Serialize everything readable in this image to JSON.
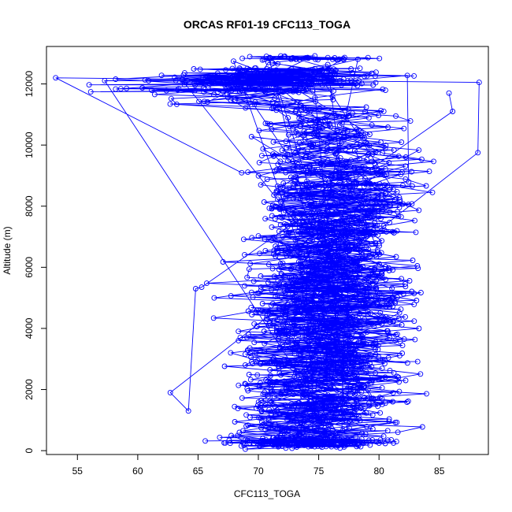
{
  "chart_data": {
    "type": "scatter",
    "title": "ORCAS RF01-19 CFC113_TOGA",
    "xlabel": "CFC113_TOGA",
    "ylabel": "Altitude (m)",
    "xlim": [
      52.5,
      89
    ],
    "ylim": [
      -100,
      13200
    ],
    "x_ticks": [
      55,
      60,
      65,
      70,
      75,
      80,
      85
    ],
    "y_ticks": [
      0,
      2000,
      4000,
      6000,
      8000,
      10000,
      12000
    ],
    "series_color": "#0000ff",
    "marker": "open-circle",
    "connected": true,
    "grid": false,
    "legend": "none",
    "distribution": {
      "altitude_bands_m": [
        0,
        500,
        1500,
        3000,
        5000,
        7000,
        9000,
        11000,
        11700,
        12500,
        13000
      ],
      "x_min": [
        63,
        64,
        62.5,
        64,
        64.5,
        67,
        68,
        68,
        53,
        60,
        67
      ],
      "x_max": [
        80,
        84,
        84,
        84,
        84,
        85,
        88.3,
        86,
        88.3,
        85,
        82
      ],
      "x_center": [
        74,
        74.5,
        75,
        75.5,
        75.5,
        76,
        76.5,
        76,
        68,
        73,
        75
      ]
    },
    "notable_points": [
      {
        "x": 53.2,
        "y": 12200
      },
      {
        "x": 88.3,
        "y": 12050
      },
      {
        "x": 88.2,
        "y": 9750
      },
      {
        "x": 62.7,
        "y": 1900
      },
      {
        "x": 64.2,
        "y": 1300
      },
      {
        "x": 64.8,
        "y": 5300
      },
      {
        "x": 65.3,
        "y": 5350
      },
      {
        "x": 86.1,
        "y": 11100
      },
      {
        "x": 85.8,
        "y": 11700
      }
    ]
  }
}
